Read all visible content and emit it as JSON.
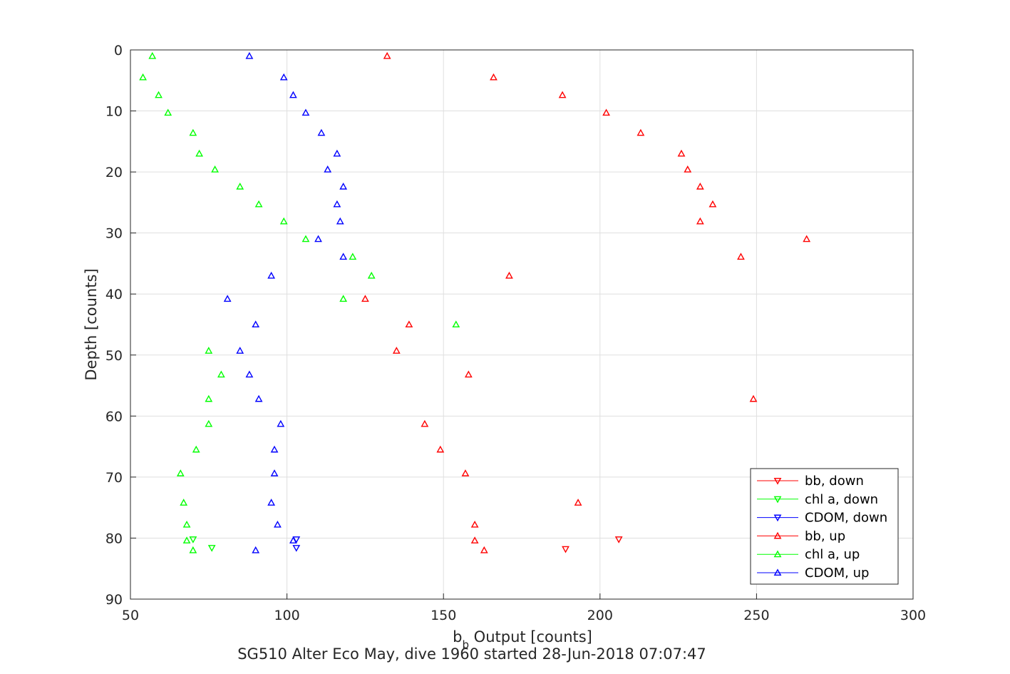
{
  "chart_data": {
    "type": "scatter",
    "title": "SG510 Alter Eco May, dive 1960 started 28-Jun-2018 07:07:47",
    "xlabel": "b  Output [counts]",
    "xlabel_main": "b",
    "xlabel_sub": "b",
    "xlabel_rest": " Output [counts]",
    "ylabel": "Depth [counts]",
    "xlim": [
      50,
      300
    ],
    "ylim": [
      0,
      90
    ],
    "y_reversed": true,
    "grid": true,
    "legend_position": "bottom-right",
    "xticks": [
      "50",
      "100",
      "150",
      "200",
      "250",
      "300"
    ],
    "yticks": [
      "0",
      "10",
      "20",
      "30",
      "40",
      "50",
      "60",
      "70",
      "80",
      "90"
    ],
    "series": [
      {
        "name": "bb, down",
        "color": "#ff0000",
        "marker": "triangle-down",
        "points": [
          [
            206,
            80.2
          ],
          [
            189,
            81.8
          ]
        ]
      },
      {
        "name": "chl a, down",
        "color": "#00ff00",
        "marker": "triangle-down",
        "points": [
          [
            70,
            80.2
          ],
          [
            76,
            81.6
          ]
        ]
      },
      {
        "name": "CDOM, down",
        "color": "#0000ff",
        "marker": "triangle-down",
        "points": [
          [
            103,
            80.2
          ],
          [
            103,
            81.6
          ]
        ]
      },
      {
        "name": "bb, up",
        "color": "#ff0000",
        "marker": "triangle-up",
        "points": [
          [
            132,
            1.0
          ],
          [
            166,
            4.5
          ],
          [
            188,
            7.4
          ],
          [
            202,
            10.3
          ],
          [
            213,
            13.6
          ],
          [
            226,
            17.0
          ],
          [
            228,
            19.6
          ],
          [
            232,
            22.4
          ],
          [
            236,
            25.3
          ],
          [
            232,
            28.1
          ],
          [
            266,
            31.0
          ],
          [
            245,
            33.9
          ],
          [
            171,
            37.0
          ],
          [
            125,
            40.8
          ],
          [
            139,
            45.0
          ],
          [
            135,
            49.3
          ],
          [
            158,
            53.2
          ],
          [
            249,
            57.2
          ],
          [
            144,
            61.3
          ],
          [
            149,
            65.5
          ],
          [
            157,
            69.4
          ],
          [
            193,
            74.2
          ],
          [
            160,
            77.8
          ],
          [
            160,
            80.4
          ],
          [
            163,
            82.0
          ]
        ]
      },
      {
        "name": "chl a, up",
        "color": "#00ff00",
        "marker": "triangle-up",
        "points": [
          [
            57,
            1.0
          ],
          [
            54,
            4.5
          ],
          [
            59,
            7.4
          ],
          [
            62,
            10.3
          ],
          [
            70,
            13.6
          ],
          [
            72,
            17.0
          ],
          [
            77,
            19.6
          ],
          [
            85,
            22.4
          ],
          [
            91,
            25.3
          ],
          [
            99,
            28.1
          ],
          [
            106,
            31.0
          ],
          [
            121,
            33.9
          ],
          [
            127,
            37.0
          ],
          [
            118,
            40.8
          ],
          [
            154,
            45.0
          ],
          [
            75,
            49.3
          ],
          [
            79,
            53.2
          ],
          [
            75,
            57.2
          ],
          [
            75,
            61.3
          ],
          [
            71,
            65.5
          ],
          [
            66,
            69.4
          ],
          [
            67,
            74.2
          ],
          [
            68,
            77.8
          ],
          [
            68,
            80.4
          ],
          [
            70,
            82.0
          ]
        ]
      },
      {
        "name": "CDOM, up",
        "color": "#0000ff",
        "marker": "triangle-up",
        "points": [
          [
            88,
            1.0
          ],
          [
            99,
            4.5
          ],
          [
            102,
            7.4
          ],
          [
            106,
            10.3
          ],
          [
            111,
            13.6
          ],
          [
            116,
            17.0
          ],
          [
            113,
            19.6
          ],
          [
            118,
            22.4
          ],
          [
            116,
            25.3
          ],
          [
            117,
            28.1
          ],
          [
            110,
            31.0
          ],
          [
            118,
            33.9
          ],
          [
            95,
            37.0
          ],
          [
            81,
            40.8
          ],
          [
            90,
            45.0
          ],
          [
            85,
            49.3
          ],
          [
            88,
            53.2
          ],
          [
            91,
            57.2
          ],
          [
            98,
            61.3
          ],
          [
            96,
            65.5
          ],
          [
            96,
            69.4
          ],
          [
            95,
            74.2
          ],
          [
            97,
            77.8
          ],
          [
            102,
            80.4
          ],
          [
            90,
            82.0
          ]
        ]
      }
    ]
  }
}
